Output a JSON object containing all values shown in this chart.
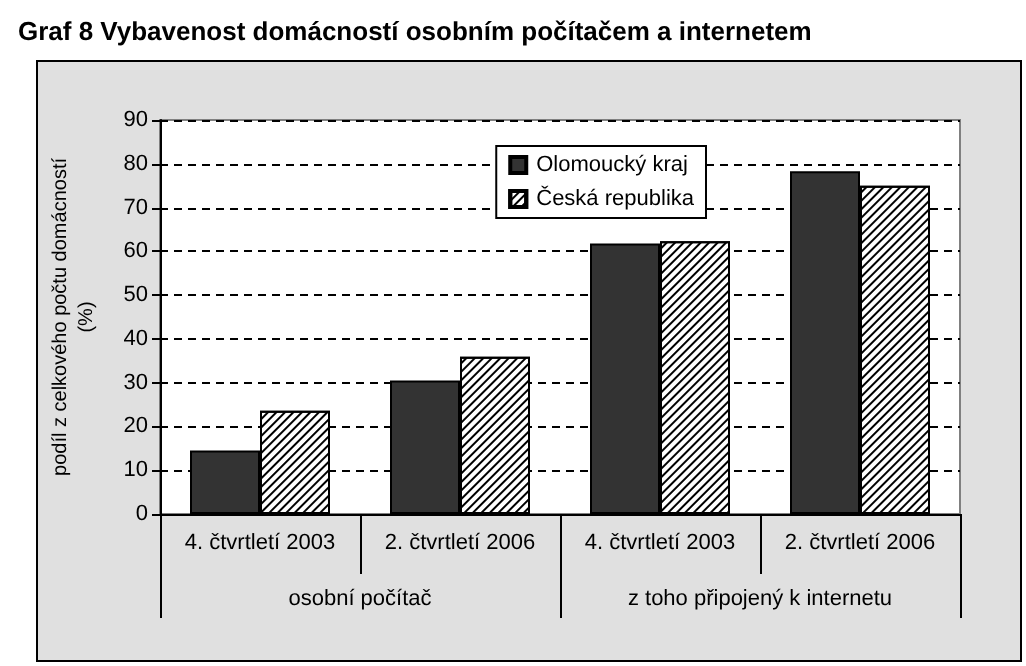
{
  "chart_data": {
    "type": "bar",
    "title": "Graf 8 Vybavenost domácností osobním počítačem a internetem",
    "ylabel": "podíl z celkového počtu domácností\n(%)",
    "categories": [
      "4. čtvrtletí 2003",
      "2. čtvrtletí 2006",
      "4. čtvrtletí 2003",
      "2. čtvrtletí 2006"
    ],
    "annotations": [
      "osobní počítač",
      "z toho připojený k internetu"
    ],
    "series": [
      {
        "name": "Olomoucký kraj",
        "color": "#333333",
        "values": [
          14.5,
          30.5,
          61.8,
          78.3
        ]
      },
      {
        "name": "Česká republika",
        "color": "#ffffff",
        "values": [
          23.6,
          35.9,
          62.3,
          75.0
        ]
      }
    ],
    "ylim": [
      0,
      90
    ],
    "yticks": [
      0,
      10,
      20,
      30,
      40,
      50,
      60,
      70,
      80,
      90
    ],
    "grid": "y",
    "legend": "top right"
  }
}
